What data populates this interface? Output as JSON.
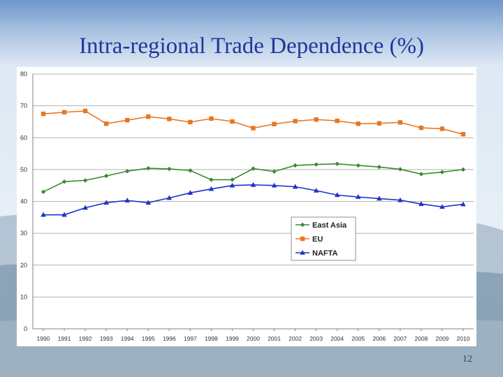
{
  "slide": {
    "title": "Intra-regional Trade Dependence (%)",
    "page_number": "12"
  },
  "chart_data": {
    "type": "line",
    "title": "Intra-regional Trade Dependence (%)",
    "xlabel": "",
    "ylabel": "",
    "ylim": [
      0,
      80
    ],
    "yticks": [
      0,
      10,
      20,
      30,
      40,
      50,
      60,
      70,
      80
    ],
    "grid": true,
    "legend_position": "center-right",
    "x": [
      "1990",
      "1991",
      "1992",
      "1993",
      "1994",
      "1995",
      "1996",
      "1997",
      "1998",
      "1999",
      "2000",
      "2001",
      "2002",
      "2003",
      "2004",
      "2005",
      "2006",
      "2007",
      "2008",
      "2009",
      "2010"
    ],
    "series": [
      {
        "name": "East Asia",
        "color": "#3a8a2e",
        "marker": "diamond",
        "values": [
          43.0,
          46.2,
          46.6,
          48.0,
          49.5,
          50.4,
          50.2,
          49.7,
          46.8,
          46.8,
          50.3,
          49.4,
          51.3,
          51.6,
          51.8,
          51.3,
          50.8,
          50.1,
          48.6,
          49.2,
          50.0
        ]
      },
      {
        "name": "EU",
        "color": "#e87722",
        "marker": "square",
        "values": [
          67.5,
          68.0,
          68.4,
          64.4,
          65.5,
          66.6,
          65.9,
          64.9,
          66.0,
          65.1,
          63.0,
          64.3,
          65.2,
          65.7,
          65.3,
          64.4,
          64.5,
          64.8,
          63.1,
          62.8,
          61.1
        ]
      },
      {
        "name": "NAFTA",
        "color": "#1c34c8",
        "marker": "triangle",
        "values": [
          35.8,
          35.8,
          38.0,
          39.6,
          40.3,
          39.6,
          41.1,
          42.7,
          43.9,
          45.0,
          45.2,
          45.0,
          44.6,
          43.4,
          42.0,
          41.4,
          40.9,
          40.4,
          39.2,
          38.3,
          39.1
        ]
      }
    ]
  }
}
